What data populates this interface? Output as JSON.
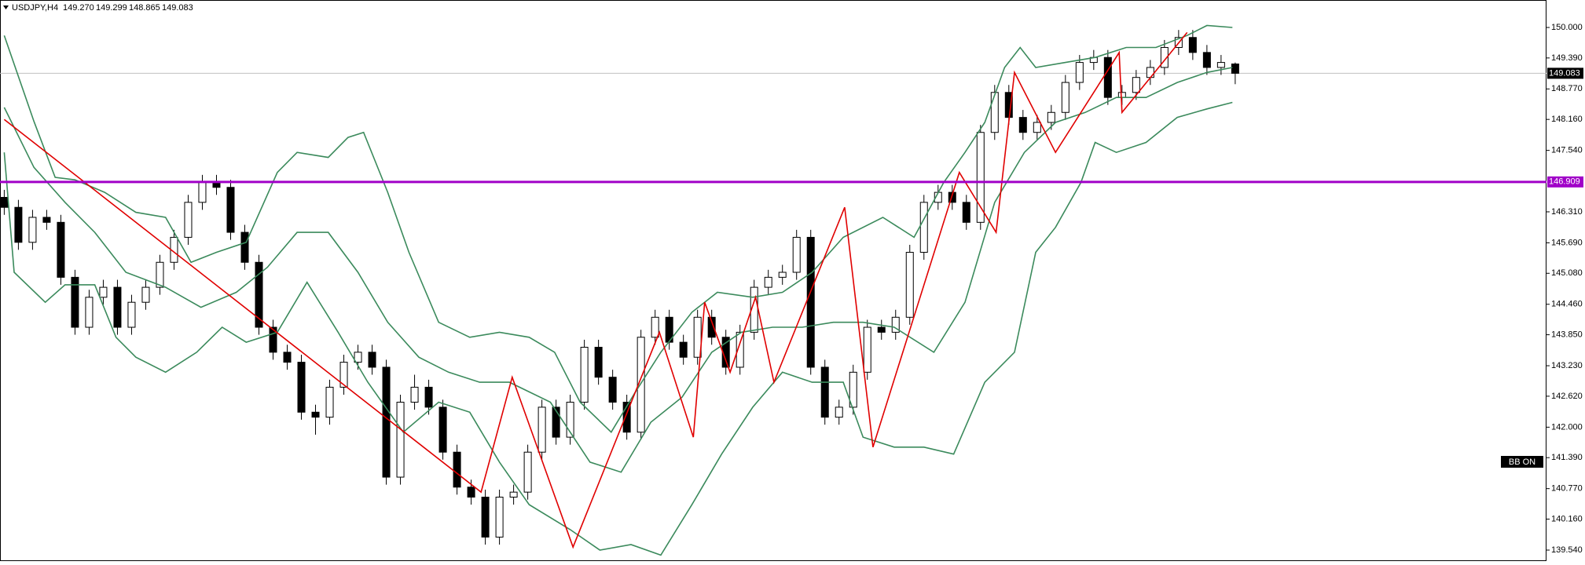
{
  "chart_data": {
    "type": "candlestick",
    "title": "USDJPY,H4",
    "quote_labels": [
      "149.270",
      "149.299",
      "148.865",
      "149.083"
    ],
    "ylim": [
      139.32,
      150.55
    ],
    "xlim": [
      -0.3,
      109
    ],
    "yticks": [
      {
        "value": 150.0,
        "label": "150.000"
      },
      {
        "value": 149.39,
        "label": "149.390"
      },
      {
        "value": 148.77,
        "label": "148.770"
      },
      {
        "value": 148.16,
        "label": "148.160"
      },
      {
        "value": 147.54,
        "label": "147.540"
      },
      {
        "value": 146.31,
        "label": "146.310"
      },
      {
        "value": 145.69,
        "label": "145.690"
      },
      {
        "value": 145.08,
        "label": "145.080"
      },
      {
        "value": 144.46,
        "label": "144.460"
      },
      {
        "value": 143.85,
        "label": "143.850"
      },
      {
        "value": 143.23,
        "label": "143.230"
      },
      {
        "value": 142.62,
        "label": "142.620"
      },
      {
        "value": 142.0,
        "label": "142.000"
      },
      {
        "value": 141.39,
        "label": "141.390"
      },
      {
        "value": 140.77,
        "label": "140.770"
      },
      {
        "value": 140.16,
        "label": "140.160"
      },
      {
        "value": 139.54,
        "label": "139.540"
      }
    ],
    "candles": {
      "open": [
        146.6,
        146.4,
        145.7,
        146.2,
        146.1,
        145.0,
        144.0,
        144.6,
        144.8,
        144.0,
        144.5,
        144.8,
        145.3,
        145.8,
        146.5,
        146.9,
        146.8,
        145.9,
        145.3,
        144.0,
        143.5,
        143.3,
        142.3,
        142.2,
        142.8,
        143.3,
        143.5,
        143.2,
        141.0,
        142.5,
        142.8,
        142.4,
        141.5,
        140.8,
        140.6,
        139.8,
        140.6,
        140.7,
        141.5,
        142.4,
        141.8,
        142.5,
        143.6,
        143.0,
        142.5,
        141.9,
        143.8,
        144.2,
        143.7,
        143.4,
        144.2,
        143.8,
        143.2,
        143.9,
        144.8,
        145.0,
        145.1,
        145.8,
        143.2,
        142.2,
        142.4,
        143.1,
        144.0,
        143.9,
        144.2,
        145.5,
        146.5,
        146.7,
        146.5,
        146.1,
        147.9,
        148.7,
        148.2,
        147.9,
        148.1,
        148.3,
        148.9,
        149.3,
        149.4,
        148.6,
        148.7,
        149.0,
        149.2,
        149.6,
        149.8,
        149.5,
        149.2,
        149.27
      ],
      "high": [
        146.75,
        146.55,
        146.35,
        146.35,
        146.25,
        145.15,
        144.75,
        144.95,
        144.95,
        144.65,
        144.95,
        145.45,
        145.95,
        146.65,
        147.05,
        147.05,
        146.95,
        146.05,
        145.45,
        144.15,
        143.65,
        143.45,
        142.45,
        142.95,
        143.45,
        143.65,
        143.65,
        143.35,
        142.65,
        143.05,
        142.95,
        142.55,
        141.65,
        140.95,
        140.75,
        140.75,
        140.85,
        141.65,
        142.55,
        142.55,
        142.65,
        143.75,
        143.75,
        143.15,
        142.65,
        143.95,
        144.35,
        144.35,
        143.85,
        144.35,
        144.35,
        143.95,
        144.05,
        144.95,
        145.15,
        145.25,
        145.95,
        145.95,
        143.35,
        142.55,
        143.25,
        144.15,
        144.15,
        144.35,
        145.65,
        146.65,
        146.85,
        146.85,
        146.65,
        148.05,
        148.85,
        148.85,
        148.35,
        148.25,
        148.45,
        149.05,
        149.45,
        149.55,
        149.55,
        148.85,
        149.15,
        149.35,
        149.75,
        149.95,
        149.95,
        149.65,
        149.45,
        149.299
      ],
      "low": [
        146.25,
        145.55,
        145.55,
        145.95,
        144.85,
        143.85,
        143.85,
        144.45,
        143.85,
        143.85,
        144.35,
        144.65,
        145.15,
        145.65,
        146.35,
        146.65,
        145.75,
        145.15,
        143.85,
        143.35,
        143.15,
        142.15,
        141.85,
        142.05,
        142.65,
        143.15,
        143.05,
        140.85,
        140.85,
        142.35,
        142.25,
        141.35,
        140.65,
        140.45,
        139.65,
        139.65,
        140.45,
        140.55,
        141.35,
        141.65,
        141.65,
        142.35,
        142.85,
        142.35,
        141.75,
        141.75,
        143.65,
        143.55,
        143.25,
        143.25,
        143.65,
        143.05,
        143.05,
        143.75,
        144.65,
        144.85,
        144.95,
        143.05,
        142.05,
        142.05,
        142.25,
        142.95,
        143.75,
        143.75,
        144.05,
        145.35,
        146.35,
        146.35,
        145.95,
        145.95,
        147.75,
        148.05,
        147.75,
        147.75,
        147.95,
        148.15,
        148.75,
        149.15,
        148.45,
        148.45,
        148.55,
        148.85,
        149.05,
        149.45,
        149.35,
        149.05,
        149.05,
        148.865
      ],
      "close": [
        146.4,
        145.7,
        146.2,
        146.1,
        145.0,
        144.0,
        144.6,
        144.8,
        144.0,
        144.5,
        144.8,
        145.3,
        145.8,
        146.5,
        146.9,
        146.8,
        145.9,
        145.3,
        144.0,
        143.5,
        143.3,
        142.3,
        142.2,
        142.8,
        143.3,
        143.5,
        143.2,
        141.0,
        142.5,
        142.8,
        142.4,
        141.5,
        140.8,
        140.6,
        139.8,
        140.6,
        140.7,
        141.5,
        142.4,
        141.8,
        142.5,
        143.6,
        143.0,
        142.5,
        141.9,
        143.8,
        144.2,
        143.7,
        143.4,
        144.2,
        143.8,
        143.2,
        143.9,
        144.8,
        145.0,
        145.1,
        145.8,
        143.2,
        142.2,
        142.4,
        143.1,
        144.0,
        143.9,
        144.2,
        145.5,
        146.5,
        146.7,
        146.5,
        146.1,
        147.9,
        148.7,
        148.2,
        147.9,
        148.1,
        148.3,
        148.9,
        149.3,
        149.4,
        148.6,
        148.7,
        149.0,
        149.2,
        149.6,
        149.8,
        149.5,
        149.2,
        149.3,
        149.083
      ]
    },
    "lines": [
      {
        "color": "#3b8a5c",
        "x": [
          0,
          2.1,
          3.6,
          5,
          7.1,
          9.3,
          11.4,
          13.2,
          15,
          17.1,
          19.3,
          20.7,
          22.9,
          24.3,
          25.4,
          27.1,
          28.6,
          30.7,
          32.9,
          35,
          37.1,
          38.9,
          40.7,
          42.9,
          44.6,
          46.4,
          48.6,
          50.4,
          52.9,
          55,
          57.1,
          59.3,
          62.1,
          64.3,
          66.4,
          67.9,
          69.3,
          70.7,
          71.8,
          72.9,
          75,
          77.1,
          79.3,
          81.4,
          83.6,
          85,
          86.8
        ],
        "values": [
          149.84,
          148.12,
          147.0,
          146.95,
          146.7,
          146.3,
          146.2,
          145.3,
          145.5,
          145.7,
          147.1,
          147.5,
          147.4,
          147.8,
          147.9,
          146.7,
          145.5,
          144.1,
          143.8,
          143.9,
          143.8,
          143.5,
          142.5,
          141.9,
          142.7,
          143.5,
          144.3,
          144.7,
          144.6,
          144.7,
          145.1,
          145.8,
          146.2,
          145.8,
          146.9,
          147.5,
          148.1,
          149.2,
          149.6,
          149.2,
          149.3,
          149.4,
          149.6,
          149.6,
          149.84,
          150.04,
          150.0
        ]
      },
      {
        "color": "#3b8a5c",
        "x": [
          0,
          2.1,
          4.3,
          6.4,
          8.6,
          11.4,
          13.9,
          16.4,
          18.6,
          20.7,
          22.9,
          25,
          27.1,
          29.3,
          31.4,
          33.6,
          35.7,
          38.6,
          41.4,
          43.6,
          45.7,
          47.9,
          50,
          52.1,
          54.3,
          56.4,
          58.6,
          60.7,
          62.9,
          65.7,
          67.9,
          70,
          72.1,
          74.3,
          76.4,
          78.6,
          80.7,
          82.9,
          85,
          86.8
        ],
        "values": [
          148.4,
          147.2,
          146.5,
          145.9,
          145.1,
          144.8,
          144.4,
          144.7,
          145.2,
          145.9,
          145.9,
          145.1,
          144.1,
          143.4,
          143.1,
          142.9,
          142.9,
          142.5,
          141.3,
          141.1,
          142.1,
          142.6,
          143.5,
          143.9,
          144.0,
          144.0,
          144.1,
          144.1,
          144.0,
          143.5,
          144.5,
          146.5,
          147.5,
          148.1,
          148.3,
          148.6,
          148.6,
          148.9,
          149.1,
          149.2
        ]
      },
      {
        "color": "#3b8a5c",
        "x": [
          0,
          0.7,
          2.9,
          4.3,
          6.4,
          7.9,
          9.3,
          11.4,
          13.6,
          15.4,
          17.1,
          19.3,
          21.4,
          23.6,
          25.7,
          28.2,
          30.7,
          32.9,
          35,
          37.1,
          40,
          42.1,
          44.3,
          46.4,
          48.6,
          50.7,
          52.9,
          55,
          57.1,
          59.3,
          60.7,
          62.9,
          65,
          67.1,
          69.3,
          71.4,
          72.9,
          74.3,
          76.1,
          77.1,
          78.6,
          80.7,
          82.9,
          85,
          86.8
        ],
        "values": [
          147.5,
          145.1,
          144.5,
          144.85,
          144.85,
          143.8,
          143.4,
          143.1,
          143.5,
          144.0,
          143.7,
          143.9,
          144.9,
          143.9,
          142.9,
          141.9,
          142.5,
          142.3,
          141.3,
          140.45,
          139.95,
          139.54,
          139.65,
          139.44,
          140.45,
          141.46,
          142.4,
          143.1,
          142.9,
          142.9,
          141.8,
          141.6,
          141.6,
          141.46,
          142.9,
          143.5,
          145.5,
          146.0,
          146.9,
          147.7,
          147.5,
          147.7,
          148.2,
          148.37,
          148.5
        ]
      },
      {
        "color": "#e00000",
        "x": [
          0,
          33.7,
          35.9,
          40.2,
          46.3,
          48.7,
          49.5,
          51.3,
          53.1,
          54.4,
          59.4,
          61.4,
          67.5,
          70.1,
          71.4,
          74.3,
          78.8,
          79,
          83.6
        ],
        "values": [
          148.16,
          140.7,
          143.0,
          139.6,
          143.9,
          141.8,
          144.5,
          143.1,
          144.6,
          142.9,
          146.4,
          141.6,
          147.1,
          145.9,
          149.1,
          147.5,
          149.5,
          148.3,
          149.9
        ]
      }
    ],
    "hline": {
      "value": 146.909,
      "label": "146.909",
      "color": "#a000c8"
    },
    "last_price": {
      "value": 149.083,
      "label": "149.083",
      "color": "#c0c0c0"
    }
  },
  "ui": {
    "button": "BB ON"
  }
}
